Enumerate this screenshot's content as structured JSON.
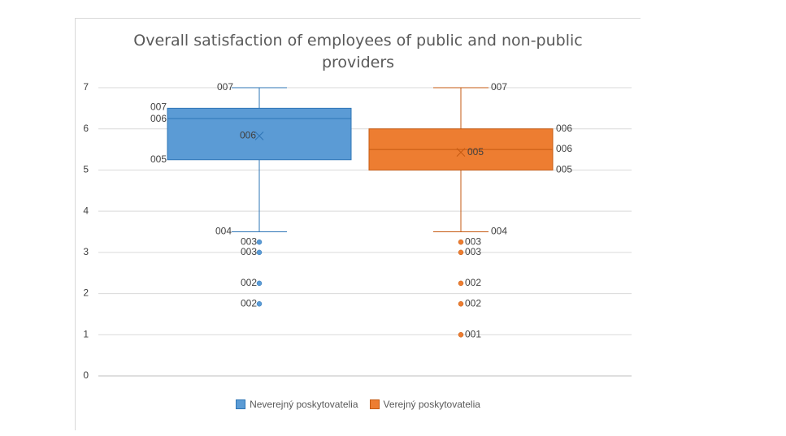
{
  "chart_data": {
    "type": "box",
    "title": "Overall satisfaction of employees of public and non-public providers",
    "title_lines": [
      "Overall satisfaction of employees of public and non-public",
      "providers"
    ],
    "xlabel": "",
    "ylabel": "",
    "ylim": [
      0,
      7
    ],
    "yticks": [
      0,
      1,
      2,
      3,
      4,
      5,
      6,
      7
    ],
    "ytick_labels": [
      "0",
      "1",
      "2",
      "3",
      "4",
      "5",
      "6",
      "7"
    ],
    "grid": true,
    "legend_position": "bottom",
    "series": [
      {
        "name": "Neverejný poskytovatelia",
        "color": "#5b9bd5",
        "edge_color": "#2e75b6",
        "whisker_low": 3.5,
        "q1": 5.25,
        "median": 6.25,
        "q3": 6.5,
        "whisker_high": 7,
        "mean": 5.83,
        "outliers": [
          3.25,
          3,
          2.25,
          1.75
        ],
        "labels": [
          {
            "value": 7,
            "text": "007",
            "side": "left-top"
          },
          {
            "value": 6.5,
            "text": "007",
            "side": "left-box"
          },
          {
            "value": 6.25,
            "text": "006",
            "side": "left-box"
          },
          {
            "value": 5.83,
            "text": "006",
            "side": "mean"
          },
          {
            "value": 5.25,
            "text": "005",
            "side": "left-box"
          },
          {
            "value": 3.5,
            "text": "004",
            "side": "left-bottom"
          },
          {
            "value": 3.25,
            "text": "003",
            "side": "outlier"
          },
          {
            "value": 3,
            "text": "003",
            "side": "outlier"
          },
          {
            "value": 2.25,
            "text": "002",
            "side": "outlier"
          },
          {
            "value": 1.75,
            "text": "002",
            "side": "outlier"
          }
        ]
      },
      {
        "name": "Verejný poskytovatelia",
        "color": "#ed7d31",
        "edge_color": "#c55a11",
        "whisker_low": 3.5,
        "q1": 5,
        "median": 5.5,
        "q3": 6,
        "whisker_high": 7,
        "mean": 5.43,
        "outliers": [
          3.25,
          3,
          2.25,
          1.75,
          1
        ],
        "labels": [
          {
            "value": 7,
            "text": "007",
            "side": "right-top"
          },
          {
            "value": 6,
            "text": "006",
            "side": "right-box"
          },
          {
            "value": 5.5,
            "text": "006",
            "side": "right-box"
          },
          {
            "value": 5.43,
            "text": "005",
            "side": "mean"
          },
          {
            "value": 5,
            "text": "005",
            "side": "right-box"
          },
          {
            "value": 3.5,
            "text": "004",
            "side": "right-bottom"
          },
          {
            "value": 3.25,
            "text": "003",
            "side": "outlier"
          },
          {
            "value": 3,
            "text": "003",
            "side": "outlier"
          },
          {
            "value": 2.25,
            "text": "002",
            "side": "outlier"
          },
          {
            "value": 1.75,
            "text": "002",
            "side": "outlier"
          },
          {
            "value": 1,
            "text": "001",
            "side": "outlier"
          }
        ]
      }
    ]
  }
}
